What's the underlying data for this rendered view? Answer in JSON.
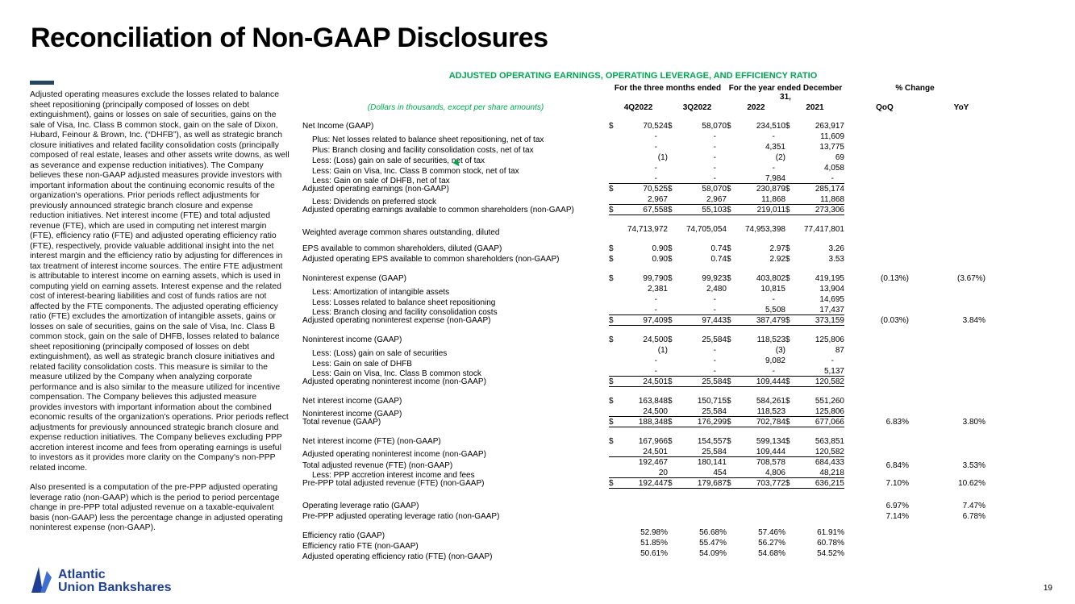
{
  "page": {
    "title": "Reconciliation of Non-GAAP Disclosures",
    "page_number": "19"
  },
  "colors": {
    "accent_green": "#00A651",
    "logo_blue": "#1E3F94",
    "accent_bar": "#23455F"
  },
  "sidebar": {
    "paragraph1": "Adjusted operating measures exclude the losses related to balance sheet repositioning (principally composed of losses on debt extinguishment), gains or losses on sale of securities, gains on the sale of Visa, Inc. Class B common stock, gain on the sale of Dixon, Hubard, Feinour & Brown, Inc. (“DHFB”), as well as strategic branch closure initiatives and related facility consolidation costs (principally composed of real estate, leases and other assets write downs, as well as severance and expense reduction initiatives). The Company believes these non-GAAP adjusted measures provide investors with important information about the continuing economic results of the organization's operations. Prior periods reflect adjustments for previously announced strategic branch closure and expense reduction initiatives. Net interest income (FTE) and total adjusted revenue (FTE), which are used in computing net interest margin (FTE), efficiency ratio (FTE) and adjusted operating efficiency ratio (FTE), respectively, provide valuable additional insight into the net interest margin and the efficiency ratio by adjusting for differences in tax treatment of interest income sources. The entire FTE adjustment is attributable to interest income on earning assets, which is used in computing yield on earning assets. Interest expense and the related cost of interest-bearing liabilities and cost of funds ratios are not affected by the FTE components. The adjusted operating efficiency ratio (FTE) excludes the amortization of intangible assets, gains or losses on sale of securities, gains on the sale of Visa, Inc. Class B common stock, gain on the sale of DHFB, losses related to balance sheet repositioning (principally composed of losses on debt extinguishment), as well as strategic branch closure initiatives and related facility consolidation costs. This measure is similar to the measure utilized by the Company when analyzing corporate performance and is also similar to the measure utilized for incentive compensation. The Company believes this adjusted measure provides investors with important information about the combined economic results of the organization's operations. Prior periods reflect adjustments for previously announced strategic branch closure and expense reduction initiatives. The Company believes excluding PPP accretion interest income and fees from operating earnings is useful to investors as it provides more clarity on the Company's non-PPP related income.",
    "paragraph2": "Also presented is a computation of the pre-PPP adjusted operating leverage ratio (non-GAAP) which is the period to period percentage change in pre-PPP total adjusted revenue on a taxable-equivalent basis (non-GAAP) less the percentage change in adjusted operating noninterest expense (non-GAAP)."
  },
  "logo": {
    "line1": "Atlantic",
    "line2": "Union Bankshares"
  },
  "table": {
    "title": "ADJUSTED OPERATING EARNINGS, OPERATING LEVERAGE, AND EFFICIENCY RATIO",
    "note": "(Dollars in thousands, except per share amounts)",
    "col_groups": [
      "For the three months ended",
      "For the year ended December 31,",
      "% Change"
    ],
    "col_headers": [
      "4Q2022",
      "3Q2022",
      "2022",
      "2021",
      "QoQ",
      "YoY"
    ],
    "rows": [
      {
        "label": "Net Income (GAAP)",
        "dollar": true,
        "values": [
          "70,524",
          "58,070",
          "234,510",
          "263,917"
        ]
      },
      {
        "label": "Plus: Net losses related to balance sheet repositioning, net of tax",
        "indent": true,
        "values": [
          "-",
          "-",
          "-",
          "11,609"
        ]
      },
      {
        "label": "Plus: Branch closing and facility consolidation costs, net of tax",
        "indent": true,
        "values": [
          "-",
          "-",
          "4,351",
          "13,775"
        ]
      },
      {
        "label": "Less: (Loss) gain on sale of securities, net of tax",
        "indent": true,
        "values": [
          "(1)",
          "-",
          "(2)",
          "69"
        ]
      },
      {
        "label": "Less: Gain on Visa, Inc. Class B common stock, net of tax",
        "indent": true,
        "values": [
          "-",
          "-",
          "-",
          "4,058"
        ]
      },
      {
        "label": "Less: Gain on sale of DHFB, net of tax",
        "indent": true,
        "values": [
          "-",
          "-",
          "7,984",
          "-"
        ],
        "cls": "bot"
      },
      {
        "label": "Adjusted operating earnings (non-GAAP)",
        "dollar": true,
        "values": [
          "70,525",
          "58,070",
          "230,879",
          "285,174"
        ]
      },
      {
        "label": "Less: Dividends on preferred stock",
        "indent": true,
        "values": [
          "2,967",
          "2,967",
          "11,868",
          "11,868"
        ],
        "cls": "bot"
      },
      {
        "label": "Adjusted operating earnings available to common shareholders (non-GAAP)",
        "dollar": true,
        "values": [
          "67,558",
          "55,103",
          "219,011",
          "273,306"
        ],
        "cls": "ubar"
      },
      {
        "spacer": true
      },
      {
        "label": "Weighted average common shares outstanding, diluted",
        "values": [
          "74,713,972",
          "74,705,054",
          "74,953,398",
          "77,417,801"
        ]
      },
      {
        "spacer": true
      },
      {
        "label": "EPS available to common shareholders, diluted (GAAP)",
        "dollar": true,
        "values": [
          "0.90",
          "0.74",
          "2.97",
          "3.26"
        ]
      },
      {
        "label": "Adjusted operating EPS available to common shareholders (non-GAAP)",
        "dollar": true,
        "values": [
          "0.90",
          "0.74",
          "2.92",
          "3.53"
        ]
      },
      {
        "spacer": true
      },
      {
        "label": "Noninterest expense (GAAP)",
        "dollar": true,
        "values": [
          "99,790",
          "99,923",
          "403,802",
          "419,195"
        ],
        "qoq": "(0.13%)",
        "yoy": "(3.67%)"
      },
      {
        "label": "Less: Amortization of intangible assets",
        "indent": true,
        "values": [
          "2,381",
          "2,480",
          "10,815",
          "13,904"
        ]
      },
      {
        "label": "Less: Losses related to balance sheet repositioning",
        "indent": true,
        "values": [
          "-",
          "-",
          "-",
          "14,695"
        ]
      },
      {
        "label": "Less: Branch closing and facility consolidation costs",
        "indent": true,
        "values": [
          "-",
          "-",
          "5,508",
          "17,437"
        ],
        "cls": "bot"
      },
      {
        "label": "Adjusted operating noninterest expense (non-GAAP)",
        "dollar": true,
        "values": [
          "97,409",
          "97,443",
          "387,479",
          "373,159"
        ],
        "qoq": "(0.03%)",
        "yoy": "3.84%",
        "cls": "ubar"
      },
      {
        "spacer": true
      },
      {
        "label": "Noninterest income (GAAP)",
        "dollar": true,
        "values": [
          "24,500",
          "25,584",
          "118,523",
          "125,806"
        ]
      },
      {
        "label": "Less: (Loss) gain on sale of securities",
        "indent": true,
        "values": [
          "(1)",
          "-",
          "(3)",
          "87"
        ]
      },
      {
        "label": "Less: Gain on sale of DHFB",
        "indent": true,
        "values": [
          "-",
          "-",
          "9,082",
          "-"
        ]
      },
      {
        "label": "Less: Gain on Visa, Inc. Class B common stock",
        "indent": true,
        "values": [
          "-",
          "-",
          "-",
          "5,137"
        ],
        "cls": "bot"
      },
      {
        "label": "Adjusted operating noninterest income (non-GAAP)",
        "dollar": true,
        "values": [
          "24,501",
          "25,584",
          "109,444",
          "120,582"
        ],
        "cls": "ubar"
      },
      {
        "spacer": true
      },
      {
        "label": "Net interest income (GAAP)",
        "dollar": true,
        "values": [
          "163,848",
          "150,715",
          "584,261",
          "551,260"
        ]
      },
      {
        "label": "Noninterest income (GAAP)",
        "values": [
          "24,500",
          "25,584",
          "118,523",
          "125,806"
        ],
        "cls": "bot"
      },
      {
        "label": "Total revenue (GAAP)",
        "dollar": true,
        "values": [
          "188,348",
          "176,299",
          "702,784",
          "677,066"
        ],
        "qoq": "6.83%",
        "yoy": "3.80%",
        "cls": "ubar"
      },
      {
        "spacer": true
      },
      {
        "label": "Net interest income (FTE) (non-GAAP)",
        "dollar": true,
        "values": [
          "167,966",
          "154,557",
          "599,134",
          "563,851"
        ]
      },
      {
        "label": "Adjusted operating noninterest income (non-GAAP)",
        "values": [
          "24,501",
          "25,584",
          "109,444",
          "120,582"
        ],
        "cls": "bot"
      },
      {
        "label": "Total adjusted revenue (FTE) (non-GAAP)",
        "values": [
          "192,467",
          "180,141",
          "708,578",
          "684,433"
        ],
        "qoq": "6.84%",
        "yoy": "3.53%"
      },
      {
        "label": "Less: PPP accretion interest income and fees",
        "indent": true,
        "values": [
          "20",
          "454",
          "4,806",
          "48,218"
        ],
        "cls": "bot"
      },
      {
        "label": "Pre-PPP total adjusted revenue (FTE) (non-GAAP)",
        "dollar": true,
        "values": [
          "192,447",
          "179,687",
          "703,772",
          "636,215"
        ],
        "qoq": "7.10%",
        "yoy": "10.62%",
        "cls": "ubar"
      },
      {
        "spacer": true
      },
      {
        "label": "Operating leverage ratio (GAAP)",
        "values": [
          "",
          "",
          "",
          ""
        ],
        "qoq": "6.97%",
        "yoy": "7.47%"
      },
      {
        "label": "Pre-PPP adjusted operating leverage ratio (non-GAAP)",
        "values": [
          "",
          "",
          "",
          ""
        ],
        "qoq": "7.14%",
        "yoy": "6.78%"
      },
      {
        "spacer": true
      },
      {
        "label": "Efficiency ratio (GAAP)",
        "values": [
          "52.98%",
          "56.68%",
          "57.46%",
          "61.91%"
        ]
      },
      {
        "label": "Efficiency ratio FTE (non-GAAP)",
        "values": [
          "51.85%",
          "55.47%",
          "56.27%",
          "60.78%"
        ]
      },
      {
        "label": "Adjusted operating efficiency ratio (FTE) (non-GAAP)",
        "values": [
          "50.61%",
          "54.09%",
          "54.68%",
          "54.52%"
        ]
      }
    ]
  }
}
